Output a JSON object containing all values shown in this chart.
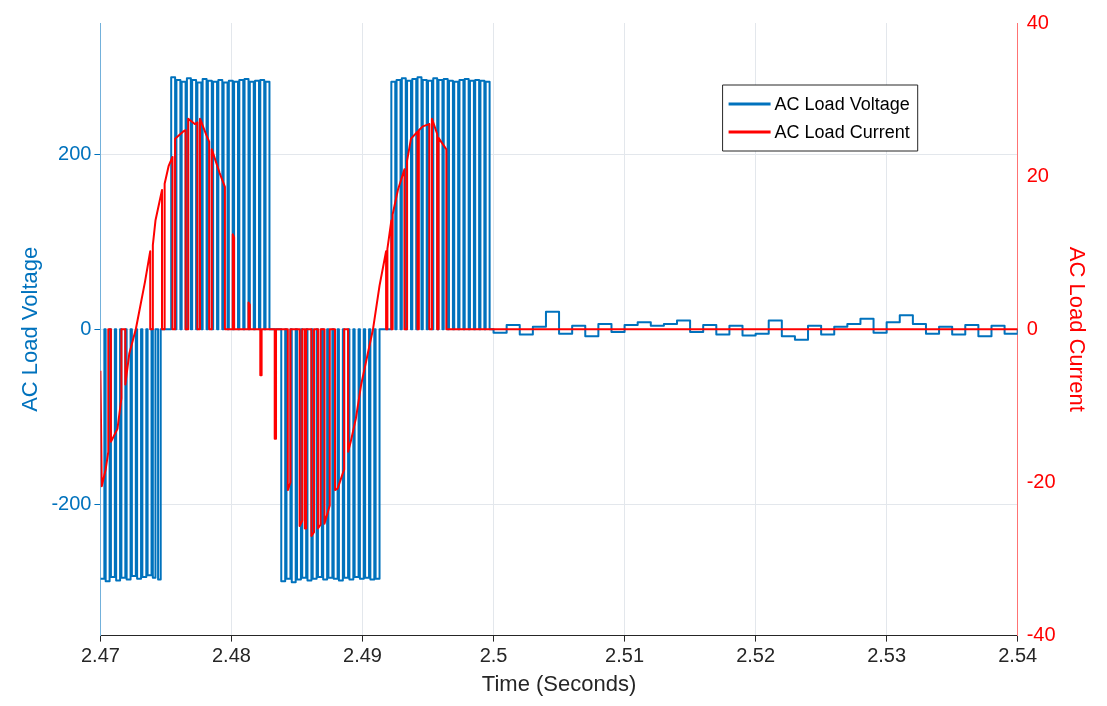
{
  "chart_data": {
    "type": "line",
    "xlabel": "Time (Seconds)",
    "ylabel": "AC Load Voltage",
    "y2label": "AC Load Current",
    "xlim": [
      2.47,
      2.54
    ],
    "xticks": [
      2.47,
      2.48,
      2.49,
      2.5,
      2.51,
      2.52,
      2.53,
      2.54
    ],
    "ylim": [
      -350,
      350
    ],
    "yticks": [
      -200,
      0,
      200
    ],
    "y2lim": [
      -40,
      40
    ],
    "y2ticks": [
      -40,
      -20,
      0,
      20,
      40
    ],
    "grid": true,
    "legend": "top right",
    "series": [
      {
        "name": "AC Load Voltage",
        "type": "step",
        "color": "#0072bd",
        "x": [
          2.47,
          2.4703,
          2.4704,
          2.4707,
          2.4708,
          2.4711,
          2.4712,
          2.4715,
          2.4716,
          2.4719,
          2.472,
          2.4723,
          2.4724,
          2.4727,
          2.4728,
          2.4731,
          2.4732,
          2.4735,
          2.4736,
          2.4739,
          2.474,
          2.4742,
          2.4744,
          2.4746,
          2.4754,
          2.4757,
          2.4758,
          2.4761,
          2.4762,
          2.4765,
          2.4766,
          2.4769,
          2.477,
          2.4773,
          2.4774,
          2.4777,
          2.4778,
          2.4781,
          2.4782,
          2.4785,
          2.4786,
          2.4789,
          2.479,
          2.4793,
          2.4794,
          2.4797,
          2.4798,
          2.4801,
          2.4802,
          2.4805,
          2.4806,
          2.4809,
          2.481,
          2.4813,
          2.4814,
          2.4817,
          2.4818,
          2.4821,
          2.4822,
          2.4825,
          2.4826,
          2.4829,
          2.4838,
          2.4841,
          2.4842,
          2.4845,
          2.4846,
          2.4849,
          2.485,
          2.4853,
          2.4854,
          2.4857,
          2.4858,
          2.4861,
          2.4862,
          2.4865,
          2.4866,
          2.4869,
          2.487,
          2.4873,
          2.4874,
          2.4877,
          2.4878,
          2.4881,
          2.4882,
          2.4885,
          2.4886,
          2.4889,
          2.489,
          2.4893,
          2.4894,
          2.4897,
          2.4898,
          2.4901,
          2.4902,
          2.4905,
          2.4906,
          2.4909,
          2.491,
          2.4913,
          2.4922,
          2.4925,
          2.4926,
          2.4929,
          2.493,
          2.4933,
          2.4934,
          2.4937,
          2.4938,
          2.4941,
          2.4942,
          2.4945,
          2.4946,
          2.4949,
          2.495,
          2.4953,
          2.4954,
          2.4957,
          2.4958,
          2.4961,
          2.4962,
          2.4965,
          2.4966,
          2.4969,
          2.497,
          2.4973,
          2.4974,
          2.4977,
          2.4978,
          2.4981,
          2.4982,
          2.4985,
          2.4986,
          2.4989,
          2.499,
          2.4993,
          2.4994,
          2.4997,
          2.5,
          2.501,
          2.502,
          2.503,
          2.504,
          2.505,
          2.506,
          2.507,
          2.508,
          2.509,
          2.51,
          2.511,
          2.512,
          2.513,
          2.514,
          2.515,
          2.516,
          2.517,
          2.518,
          2.519,
          2.52,
          2.521,
          2.522,
          2.523,
          2.524,
          2.525,
          2.526,
          2.527,
          2.528,
          2.529,
          2.53,
          2.531,
          2.532,
          2.533,
          2.534,
          2.535,
          2.536,
          2.537,
          2.538,
          2.539,
          2.54
        ],
        "values": [
          -285,
          0,
          -288,
          0,
          -283,
          0,
          -287,
          0,
          -284,
          0,
          -286,
          0,
          -282,
          0,
          -285,
          0,
          -283,
          0,
          -281,
          0,
          -284,
          0,
          -286,
          0,
          288,
          0,
          285,
          0,
          283,
          0,
          287,
          0,
          285,
          0,
          282,
          0,
          286,
          0,
          284,
          0,
          283,
          0,
          285,
          0,
          282,
          0,
          284,
          0,
          283,
          0,
          285,
          0,
          286,
          0,
          283,
          0,
          284,
          0,
          285,
          0,
          283,
          0,
          -288,
          0,
          -285,
          0,
          -289,
          0,
          -286,
          0,
          -284,
          0,
          -287,
          0,
          -285,
          0,
          -283,
          0,
          -286,
          0,
          -284,
          0,
          -285,
          0,
          -287,
          0,
          -284,
          0,
          -286,
          0,
          -283,
          0,
          -285,
          0,
          -284,
          0,
          -286,
          0,
          -285,
          0,
          283,
          0,
          285,
          0,
          287,
          0,
          284,
          0,
          286,
          0,
          288,
          0,
          285,
          0,
          284,
          0,
          287,
          0,
          285,
          0,
          286,
          0,
          284,
          0,
          283,
          0,
          285,
          0,
          286,
          0,
          284,
          0,
          285,
          0,
          284,
          0,
          283,
          0,
          -4,
          5,
          -6,
          3,
          20,
          -5,
          4,
          -8,
          6,
          -3,
          5,
          8,
          4,
          6,
          10,
          -3,
          5,
          -6,
          4,
          -7,
          -5,
          10,
          -8,
          -12,
          4,
          -6,
          3,
          6,
          12,
          -4,
          8,
          16,
          6,
          -5,
          3,
          -6,
          5,
          -8,
          4,
          -5,
          0
        ]
      },
      {
        "name": "AC Load Current",
        "axis": "y2",
        "color": "#ff0000",
        "x": [
          2.47,
          2.4701,
          2.4704,
          2.4706,
          2.4706,
          2.4708,
          2.4708,
          2.4713,
          2.4716,
          2.4716,
          2.4719,
          2.4719,
          2.4722,
          2.4727,
          2.4734,
          2.4738,
          2.4738,
          2.474,
          2.474,
          2.4742,
          2.4747,
          2.4747,
          2.4749,
          2.4749,
          2.4752,
          2.4755,
          2.4755,
          2.4757,
          2.4757,
          2.4763,
          2.4765,
          2.4765,
          2.4767,
          2.4767,
          2.4772,
          2.4774,
          2.4774,
          2.4776,
          2.4776,
          2.4781,
          2.4783,
          2.4783,
          2.4785,
          2.4785,
          2.4791,
          2.4795,
          2.4795,
          2.4801,
          2.4801,
          2.4802,
          2.4802,
          2.4813,
          2.4813,
          2.4814,
          2.4814,
          2.4822,
          2.4822,
          2.4823,
          2.4823,
          2.4833,
          2.4833,
          2.4834,
          2.4834,
          2.4843,
          2.4843,
          2.4845,
          2.4845,
          2.4852,
          2.4852,
          2.4854,
          2.4854,
          2.4856,
          2.4856,
          2.4857,
          2.4857,
          2.4861,
          2.4861,
          2.4863,
          2.4863,
          2.4866,
          2.4866,
          2.4868,
          2.4868,
          2.4871,
          2.4871,
          2.4875,
          2.4875,
          2.4879,
          2.4879,
          2.4881,
          2.4886,
          2.4886,
          2.4889,
          2.4889,
          2.4891,
          2.4895,
          2.4899,
          2.4904,
          2.4908,
          2.4913,
          2.4918,
          2.4918,
          2.4919,
          2.4919,
          2.4922,
          2.4922,
          2.4923,
          2.4923,
          2.4927,
          2.4932,
          2.4932,
          2.4934,
          2.4934,
          2.4937,
          2.4942,
          2.4942,
          2.4943,
          2.4943,
          2.4946,
          2.4951,
          2.4951,
          2.4953,
          2.4953,
          2.4955,
          2.4957,
          2.4957,
          2.4958,
          2.4958,
          2.4964,
          2.4964,
          2.54
        ],
        "values": [
          -5.4,
          -20.5,
          -18.3,
          -16,
          0,
          0,
          -14.7,
          -13,
          -9,
          0,
          0,
          -7.2,
          -3.2,
          0,
          6.2,
          10.2,
          0,
          0,
          11,
          14.2,
          18.2,
          0,
          0,
          19,
          21.3,
          22.5,
          0,
          0,
          24.9,
          25.8,
          26,
          0,
          0,
          27.5,
          26.8,
          27,
          0,
          0,
          27.5,
          25.3,
          24.5,
          0,
          0,
          23.5,
          20.4,
          18.6,
          0,
          0,
          12.4,
          12,
          0,
          0,
          3.5,
          3.2,
          0,
          0,
          -6,
          -6,
          0,
          0,
          -14.3,
          -14.3,
          0,
          0,
          -21,
          -20,
          0,
          0,
          -25.7,
          -25,
          0,
          0,
          -26,
          -26,
          0,
          0,
          -27,
          -26.5,
          0,
          0,
          -26,
          -25.5,
          0,
          0,
          -25.4,
          -23,
          0,
          0,
          -21,
          -20.8,
          -18.3,
          0,
          0,
          -16,
          -14.7,
          -11.6,
          -7.2,
          -3.2,
          0,
          5.7,
          10.2,
          0,
          0,
          10.5,
          14.2,
          0,
          0,
          15,
          18.2,
          20.9,
          0,
          0,
          22,
          24.9,
          25.8,
          0,
          0,
          26,
          26.5,
          26.8,
          0,
          0,
          27.5,
          26.5,
          25.5,
          0,
          0,
          25,
          23.5,
          0,
          0
        ]
      }
    ]
  }
}
